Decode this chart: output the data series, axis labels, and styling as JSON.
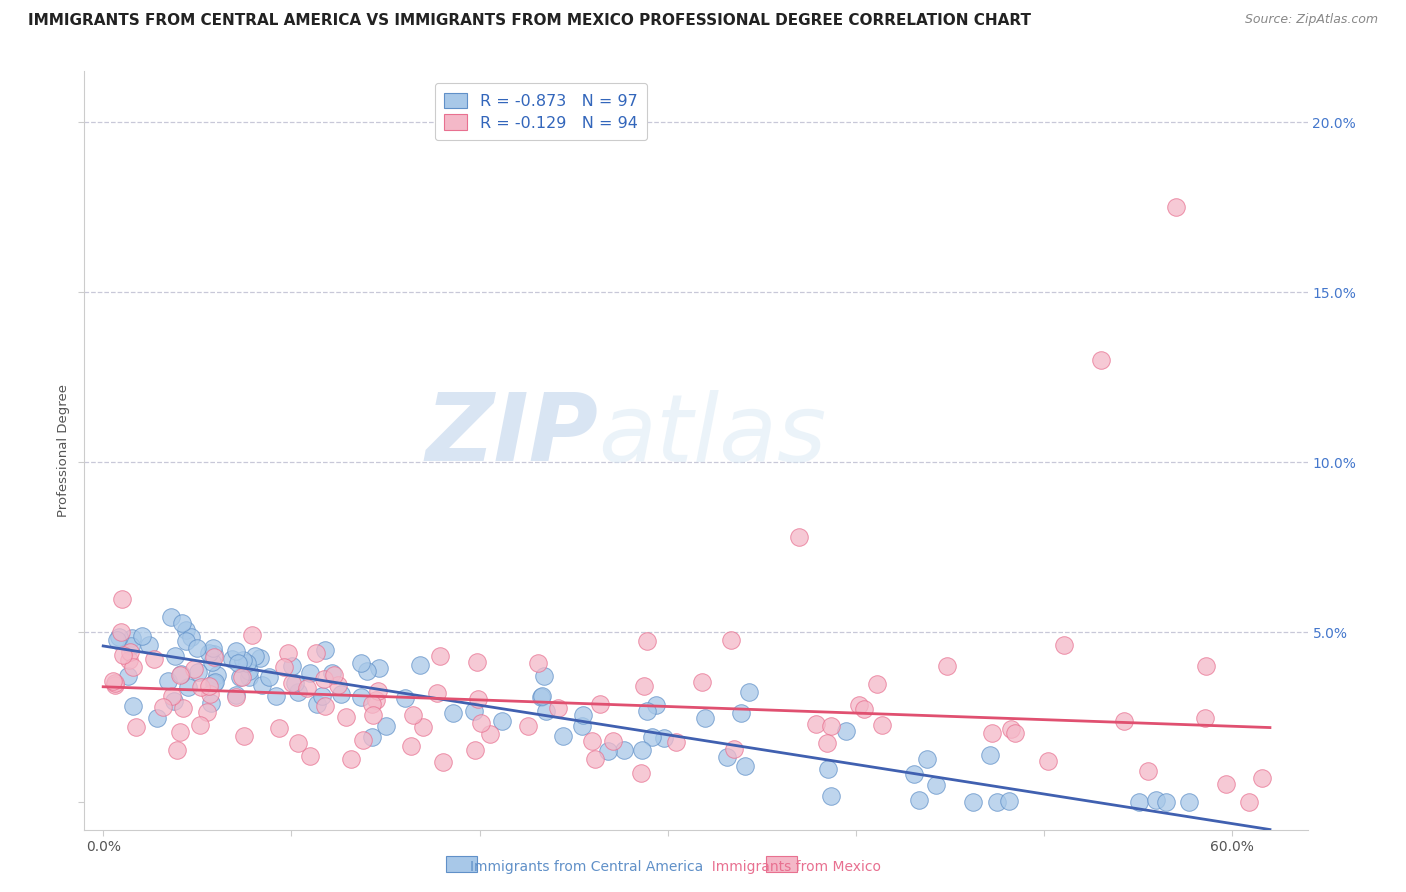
{
  "title": "IMMIGRANTS FROM CENTRAL AMERICA VS IMMIGRANTS FROM MEXICO PROFESSIONAL DEGREE CORRELATION CHART",
  "source": "Source: ZipAtlas.com",
  "ylabel": "Professional Degree",
  "x_ticks": [
    0.0,
    0.1,
    0.2,
    0.3,
    0.4,
    0.5,
    0.6
  ],
  "x_tick_labels": [
    "0.0%",
    "",
    "",
    "",
    "",
    "",
    "60.0%"
  ],
  "y_ticks": [
    0.0,
    0.05,
    0.1,
    0.15,
    0.2
  ],
  "y_tick_labels_right": [
    "",
    "5.0%",
    "10.0%",
    "15.0%",
    "20.0%"
  ],
  "xlim": [
    -0.01,
    0.64
  ],
  "ylim": [
    -0.008,
    0.215
  ],
  "legend_labels": [
    "Immigrants from Central America",
    "Immigrants from Mexico"
  ],
  "legend_R": [
    "-0.873",
    "-0.129"
  ],
  "legend_N": [
    "97",
    "94"
  ],
  "blue_color": "#a8c8e8",
  "pink_color": "#f4b8c8",
  "blue_edge_color": "#6090c8",
  "pink_edge_color": "#e87090",
  "blue_line_color": "#4060b0",
  "pink_line_color": "#e05070",
  "watermark_zip": "ZIP",
  "watermark_atlas": "atlas",
  "title_fontsize": 11,
  "axis_label_fontsize": 9.5,
  "tick_fontsize": 10,
  "right_tick_color": "#4477cc",
  "background_color": "#ffffff",
  "blue_trend_x0": 0.0,
  "blue_trend_x1": 0.62,
  "blue_trend_y0": 0.046,
  "blue_trend_y1": -0.008,
  "pink_trend_x0": 0.0,
  "pink_trend_x1": 0.62,
  "pink_trend_y0": 0.034,
  "pink_trend_y1": 0.022
}
